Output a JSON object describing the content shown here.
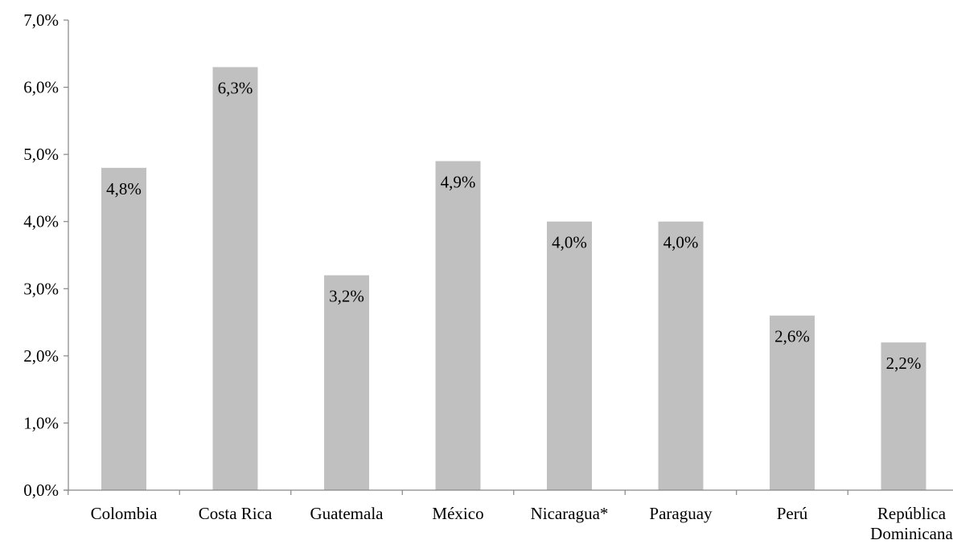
{
  "chart_data": {
    "type": "bar",
    "categories": [
      "Colombia",
      "Costa Rica",
      "Guatemala",
      "México",
      "Nicaragua*",
      "Paraguay",
      "Perú",
      "República Dominicana"
    ],
    "category_label_lines": [
      [
        "Colombia"
      ],
      [
        "Costa Rica"
      ],
      [
        "Guatemala"
      ],
      [
        "México"
      ],
      [
        "Nicaragua*"
      ],
      [
        "Paraguay"
      ],
      [
        "Perú"
      ],
      [
        "República",
        "Dominicana"
      ]
    ],
    "values": [
      4.8,
      6.3,
      3.2,
      4.9,
      4.0,
      4.0,
      2.6,
      2.2
    ],
    "data_labels": [
      "4,8%",
      "6,3%",
      "3,2%",
      "4,9%",
      "4,0%",
      "4,0%",
      "2,6%",
      "2,2%"
    ],
    "title": "",
    "xlabel": "",
    "ylabel": "",
    "ylim": [
      0,
      7
    ],
    "yticks": [
      0,
      1,
      2,
      3,
      4,
      5,
      6,
      7
    ],
    "ytick_labels": [
      "0,0%",
      "1,0%",
      "2,0%",
      "3,0%",
      "4,0%",
      "5,0%",
      "6,0%",
      "7,0%"
    ],
    "grid": false,
    "legend": "none",
    "bar_color": "#c0c0c0",
    "axis_color": "#868686"
  }
}
